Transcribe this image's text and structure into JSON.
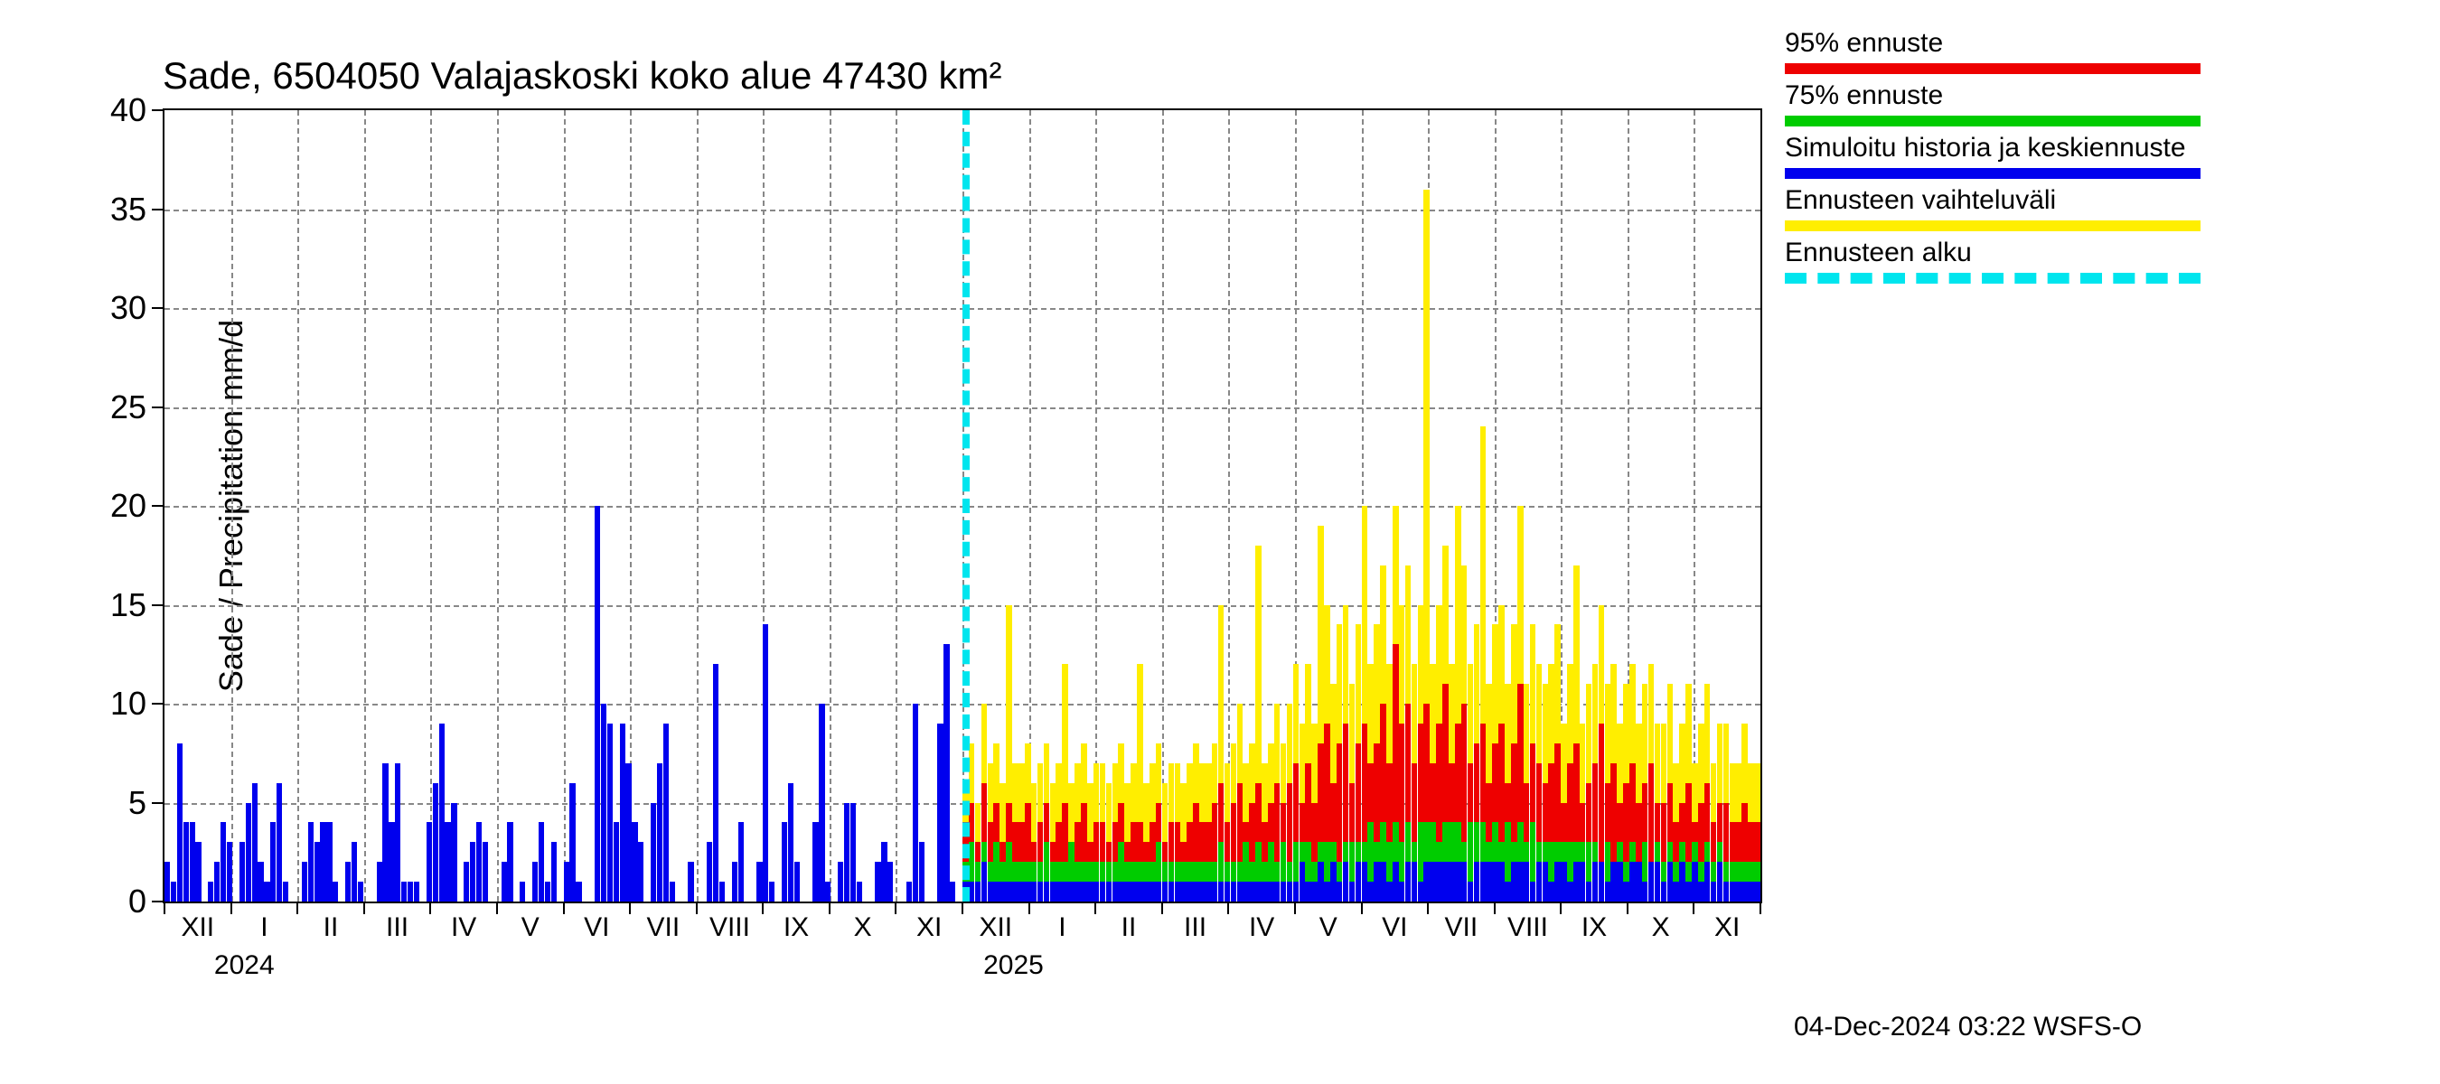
{
  "chart": {
    "title": "Sade, 6504050 Valajaskoski koko alue 47430 km²",
    "ylabel": "Sade / Precipitation   mm/d",
    "type": "stacked-bar-timeseries",
    "background_color": "#ffffff",
    "grid_color": "#888888",
    "axis_color": "#000000",
    "title_fontsize": 42,
    "label_fontsize": 36,
    "tick_fontsize": 30,
    "ylim": [
      0,
      40
    ],
    "yticks": [
      0,
      5,
      10,
      15,
      20,
      25,
      30,
      35,
      40
    ],
    "xtick_labels": [
      "XII",
      "I",
      "II",
      "III",
      "IV",
      "V",
      "VI",
      "VII",
      "VIII",
      "IX",
      "X",
      "XI",
      "XII",
      "I",
      "II",
      "III",
      "IV",
      "V",
      "VI",
      "VII",
      "VIII",
      "IX",
      "X",
      "XI"
    ],
    "year_labels": [
      {
        "label": "2024",
        "position_pct": 5.0
      },
      {
        "label": "2025",
        "position_pct": 53.2
      }
    ],
    "forecast_start_pct": 50.0,
    "forecast_line_color": "#00e5ee",
    "colors": {
      "history": "#0000ee",
      "p95": "#ee0000",
      "p75": "#00cc00",
      "range": "#ffee00"
    },
    "history": [
      2,
      1,
      8,
      4,
      4,
      3,
      0,
      1,
      2,
      4,
      3,
      0,
      3,
      5,
      6,
      2,
      1,
      4,
      6,
      1,
      0,
      0,
      2,
      4,
      3,
      4,
      4,
      1,
      0,
      2,
      3,
      1,
      0,
      0,
      2,
      7,
      4,
      7,
      1,
      1,
      1,
      0,
      4,
      6,
      9,
      4,
      5,
      0,
      2,
      3,
      4,
      3,
      0,
      0,
      2,
      4,
      0,
      1,
      0,
      2,
      4,
      1,
      3,
      0,
      2,
      6,
      1,
      0,
      0,
      20,
      10,
      9,
      4,
      9,
      7,
      4,
      3,
      0,
      5,
      7,
      9,
      1,
      0,
      0,
      2,
      0,
      0,
      3,
      12,
      1,
      0,
      2,
      4,
      0,
      0,
      2,
      14,
      1,
      0,
      4,
      6,
      2,
      0,
      0,
      4,
      10,
      1,
      0,
      2,
      5,
      5,
      1,
      0,
      0,
      2,
      3,
      2,
      0,
      0,
      1,
      10,
      3,
      0,
      0,
      9,
      13,
      1,
      0
    ],
    "forecast": {
      "mean": [
        1,
        1,
        1,
        2,
        1,
        1,
        1,
        1,
        1,
        1,
        1,
        1,
        1,
        1,
        1,
        1,
        1,
        1,
        1,
        1,
        1,
        1,
        1,
        1,
        1,
        1,
        1,
        1,
        1,
        1,
        1,
        1,
        1,
        1,
        1,
        1,
        1,
        1,
        1,
        1,
        1,
        1,
        1,
        1,
        1,
        1,
        1,
        1,
        1,
        1,
        1,
        1,
        1,
        1,
        2,
        1,
        1,
        2,
        1,
        2,
        1,
        2,
        1,
        2,
        2,
        1,
        2,
        2,
        1,
        2,
        1,
        2,
        2,
        1,
        2,
        2,
        2,
        2,
        2,
        2,
        2,
        1,
        2,
        2,
        2,
        2,
        2,
        1,
        2,
        2,
        2,
        1,
        2,
        2,
        1,
        2,
        2,
        1,
        2,
        2,
        1,
        2,
        2,
        1,
        2,
        2,
        1,
        2,
        2,
        1,
        2,
        2,
        1,
        2,
        1,
        2,
        1,
        2,
        1,
        2,
        1,
        2,
        1,
        1,
        1,
        1,
        1,
        1
      ],
      "p75": [
        2,
        3,
        2,
        3,
        2,
        3,
        2,
        3,
        2,
        2,
        2,
        2,
        2,
        3,
        2,
        2,
        2,
        3,
        2,
        2,
        2,
        2,
        2,
        2,
        2,
        3,
        2,
        2,
        2,
        2,
        2,
        3,
        2,
        2,
        2,
        2,
        2,
        2,
        2,
        2,
        2,
        3,
        2,
        2,
        2,
        3,
        2,
        3,
        2,
        3,
        2,
        3,
        2,
        3,
        3,
        3,
        2,
        3,
        3,
        3,
        2,
        3,
        3,
        3,
        3,
        4,
        3,
        4,
        3,
        4,
        3,
        4,
        3,
        4,
        4,
        4,
        3,
        4,
        4,
        4,
        3,
        4,
        4,
        4,
        3,
        4,
        3,
        4,
        3,
        4,
        3,
        4,
        3,
        3,
        3,
        3,
        3,
        3,
        3,
        3,
        3,
        3,
        2,
        3,
        2,
        3,
        2,
        3,
        2,
        3,
        2,
        3,
        2,
        3,
        2,
        3,
        2,
        3,
        2,
        3,
        2,
        3,
        2,
        2,
        2,
        2,
        2,
        2
      ],
      "p95": [
        4,
        5,
        3,
        6,
        4,
        5,
        3,
        5,
        4,
        4,
        5,
        3,
        4,
        5,
        3,
        4,
        5,
        3,
        4,
        5,
        3,
        4,
        4,
        3,
        4,
        5,
        3,
        4,
        4,
        3,
        4,
        5,
        3,
        4,
        4,
        3,
        4,
        5,
        4,
        4,
        5,
        6,
        4,
        5,
        6,
        4,
        5,
        6,
        4,
        5,
        6,
        5,
        6,
        7,
        5,
        7,
        5,
        8,
        9,
        6,
        8,
        9,
        6,
        8,
        9,
        7,
        8,
        10,
        7,
        13,
        9,
        10,
        7,
        9,
        10,
        7,
        9,
        11,
        7,
        9,
        10,
        7,
        8,
        9,
        6,
        8,
        9,
        6,
        8,
        11,
        6,
        8,
        7,
        6,
        7,
        8,
        5,
        7,
        8,
        5,
        6,
        7,
        9,
        6,
        7,
        5,
        6,
        7,
        5,
        6,
        7,
        5,
        5,
        6,
        4,
        5,
        6,
        4,
        5,
        6,
        4,
        5,
        5,
        4,
        4,
        5,
        4,
        4
      ],
      "range": [
        6,
        8,
        5,
        10,
        7,
        8,
        6,
        15,
        7,
        7,
        8,
        6,
        7,
        8,
        6,
        7,
        12,
        6,
        7,
        8,
        6,
        7,
        7,
        6,
        7,
        8,
        6,
        7,
        12,
        6,
        7,
        8,
        6,
        7,
        7,
        6,
        7,
        8,
        7,
        7,
        8,
        15,
        7,
        8,
        10,
        7,
        8,
        18,
        7,
        8,
        10,
        8,
        10,
        12,
        9,
        12,
        9,
        19,
        15,
        11,
        14,
        15,
        11,
        14,
        20,
        12,
        14,
        17,
        12,
        20,
        15,
        17,
        12,
        15,
        36,
        12,
        15,
        18,
        12,
        20,
        17,
        12,
        14,
        24,
        11,
        14,
        15,
        11,
        14,
        20,
        11,
        14,
        12,
        11,
        12,
        14,
        9,
        12,
        17,
        9,
        11,
        12,
        15,
        11,
        12,
        9,
        11,
        12,
        9,
        11,
        12,
        9,
        9,
        11,
        7,
        9,
        11,
        7,
        9,
        11,
        7,
        9,
        9,
        7,
        7,
        9,
        7,
        7
      ]
    }
  },
  "legend": {
    "items": [
      {
        "label": "95% ennuste",
        "color": "#ee0000",
        "style": "solid"
      },
      {
        "label": "75% ennuste",
        "color": "#00cc00",
        "style": "solid"
      },
      {
        "label": "Simuloitu historia ja keskiennuste",
        "color": "#0000ee",
        "style": "solid"
      },
      {
        "label": "Ennusteen vaihteluväli",
        "color": "#ffee00",
        "style": "solid"
      },
      {
        "label": "Ennusteen alku",
        "color": "#00e5ee",
        "style": "dashed"
      }
    ]
  },
  "footer": "04-Dec-2024 03:22 WSFS-O"
}
